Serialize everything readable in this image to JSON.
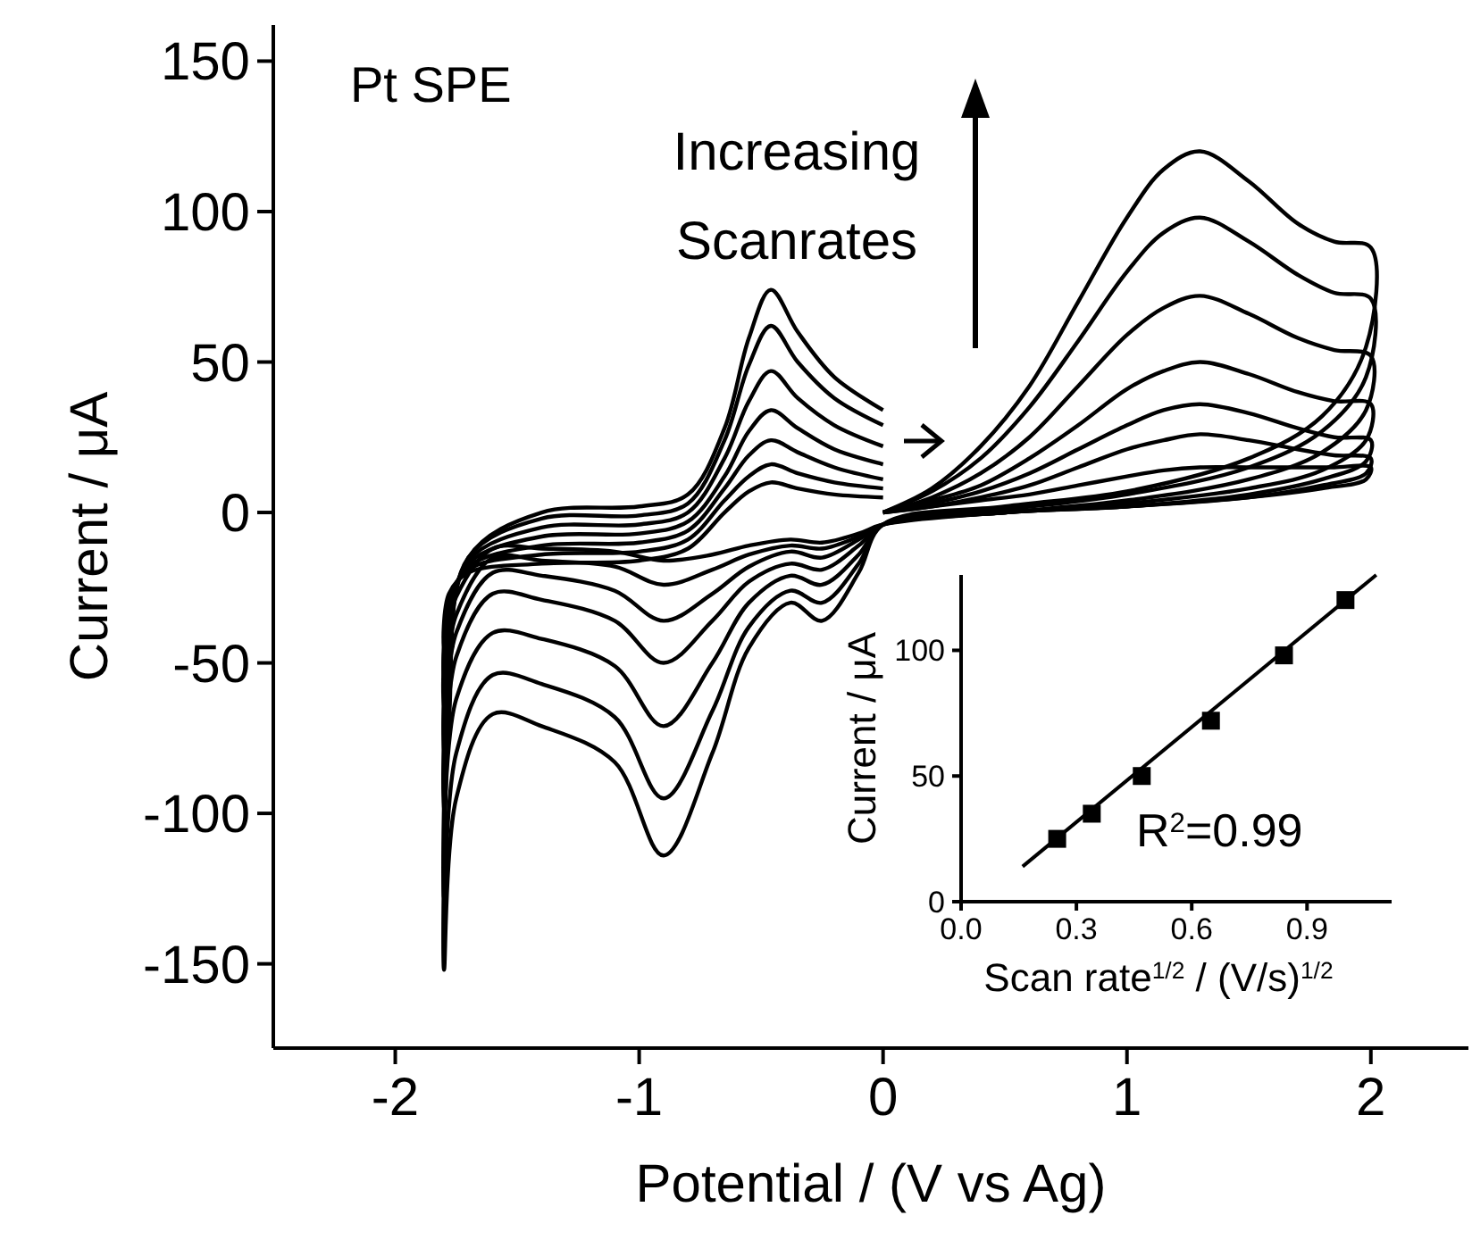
{
  "chart_data": [
    {
      "type": "line",
      "xlabel": "Potential / (V vs Ag)",
      "ylabel": "Current / μA",
      "xlim": [
        -2.5,
        2.4
      ],
      "ylim": [
        -178,
        162
      ],
      "xticks": [
        -2,
        -1,
        0,
        1,
        2
      ],
      "yticks": [
        -150,
        -100,
        -50,
        0,
        50,
        100,
        150
      ],
      "x": [
        0,
        0.2,
        0.4,
        0.6,
        0.8,
        1.0,
        1.15,
        1.3,
        1.5,
        1.7,
        1.85,
        2.0,
        1.98,
        1.8,
        1.5,
        1.0,
        0.5,
        0,
        -0.1,
        -0.25,
        -0.38,
        -0.55,
        -0.7,
        -0.9,
        -1.1,
        -1.4,
        -1.6,
        -1.75,
        -1.8,
        -1.78,
        -1.7,
        -1.4,
        -1.0,
        -0.8,
        -0.65,
        -0.55,
        -0.46,
        -0.35,
        -0.2,
        0
      ],
      "series": [
        {
          "color": "#000000",
          "values": [
            0,
            8,
            22,
            42,
            70,
            98,
            114,
            120,
            110,
            96,
            90,
            88,
            55,
            32,
            18,
            7,
            2,
            -4,
            -20,
            -36,
            -30,
            -45,
            -80,
            -114,
            -83,
            -71,
            -67,
            -95,
            -152,
            -70,
            -15,
            0,
            2,
            6,
            28,
            58,
            74,
            60,
            45,
            34
          ]
        },
        {
          "color": "#000000",
          "values": [
            0,
            7,
            18,
            35,
            57,
            80,
            93,
            98,
            90,
            79,
            73,
            71,
            45,
            27,
            15,
            6,
            1,
            -4,
            -17,
            -30,
            -26,
            -38,
            -66,
            -95,
            -68,
            -57,
            -54,
            -80,
            -128,
            -58,
            -15,
            -2,
            -1,
            3,
            24,
            49,
            62,
            50,
            38,
            29
          ]
        },
        {
          "color": "#000000",
          "values": [
            0,
            5,
            13,
            25,
            42,
            59,
            68,
            72,
            66,
            58,
            54,
            52,
            34,
            20,
            11,
            4,
            0,
            -4,
            -14,
            -24,
            -21,
            -30,
            -50,
            -71,
            -51,
            -42,
            -40,
            -62,
            -100,
            -45,
            -16,
            -5,
            -4,
            0,
            18,
            37,
            47,
            38,
            29,
            22
          ]
        },
        {
          "color": "#000000",
          "values": [
            0,
            4,
            9,
            18,
            29,
            41,
            47,
            50,
            46,
            40,
            37,
            36,
            24,
            14,
            8,
            3,
            0,
            -4,
            -11,
            -19,
            -17,
            -23,
            -36,
            -50,
            -36,
            -29,
            -27,
            -48,
            -80,
            -38,
            -17,
            -8,
            -7,
            -3,
            12,
            27,
            34,
            28,
            21,
            16
          ]
        },
        {
          "color": "#000000",
          "values": [
            0,
            3,
            7,
            13,
            21,
            29,
            34,
            36,
            33,
            28,
            25,
            24,
            17,
            11,
            6,
            2,
            0,
            -4,
            -9,
            -15,
            -13,
            -18,
            -27,
            -36,
            -26,
            -21,
            -20,
            -40,
            -65,
            -32,
            -18,
            -11,
            -10,
            -6,
            8,
            19,
            24,
            20,
            15,
            11
          ]
        },
        {
          "color": "#000000",
          "values": [
            0,
            2,
            5,
            9,
            15,
            21,
            24,
            26,
            24,
            21,
            19,
            18,
            13,
            9,
            5,
            2,
            0,
            -4,
            -8,
            -12,
            -11,
            -14,
            -19,
            -24,
            -18,
            -16,
            -15,
            -34,
            -55,
            -30,
            -19,
            -14,
            -13,
            -9,
            4,
            12,
            16,
            13,
            10,
            8
          ]
        },
        {
          "color": "#000000",
          "values": [
            0,
            2,
            4,
            6,
            9,
            12,
            14,
            15,
            15,
            15,
            15,
            15,
            11,
            8,
            5,
            2,
            0,
            -4,
            -7,
            -10,
            -9,
            -11,
            -14,
            -16,
            -13,
            -12,
            -12,
            -28,
            -45,
            -27,
            -20,
            -17,
            -16,
            -12,
            0,
            7,
            10,
            8,
            6,
            5
          ]
        }
      ],
      "annotations": [
        "Pt SPE",
        "Increasing Scanrates"
      ]
    },
    {
      "type": "scatter",
      "xlabel": "Scan rate$^{1/2}$ / (V/s)$^{1/2}$",
      "ylabel": "Current / μA",
      "xlim": [
        0,
        1.12
      ],
      "ylim": [
        0,
        130
      ],
      "xticks": [
        {
          "value": 0,
          "label": "0.0"
        },
        0.3,
        0.6,
        0.9
      ],
      "yticks": [
        0,
        50,
        100
      ],
      "series": [
        {
          "marker": "square",
          "color": "#000000",
          "x": [
            0.25,
            0.34,
            0.47,
            0.65,
            0.84,
            1.0
          ],
          "values": [
            25,
            35,
            50,
            72,
            98,
            120
          ]
        },
        {
          "type": "line",
          "color": "#000000",
          "x": [
            0.16,
            1.08
          ],
          "values": [
            14,
            130
          ]
        }
      ],
      "annotations": [
        "R$^{2}$=0.99"
      ]
    }
  ]
}
